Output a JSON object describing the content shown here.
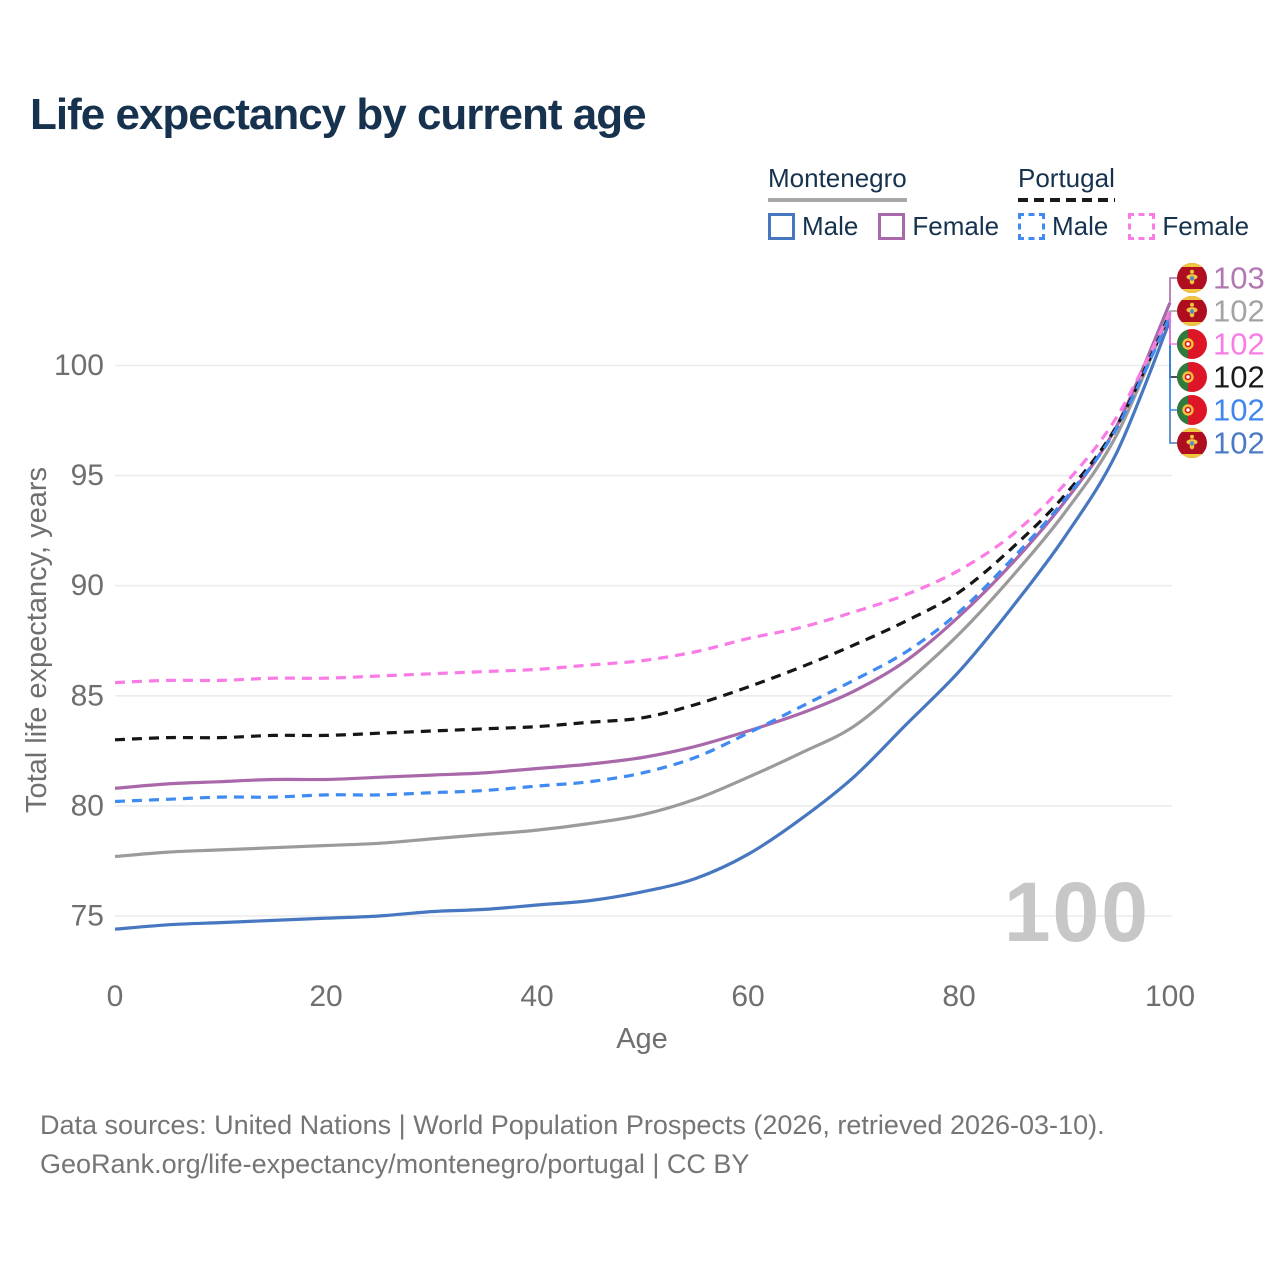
{
  "title": "Life expectancy by current age",
  "legend": {
    "groups": [
      {
        "label": "Montenegro",
        "line_style": "solid",
        "underline_color": "#a8a8a8",
        "items": [
          {
            "label": "Male",
            "color": "#4677c0"
          },
          {
            "label": "Female",
            "color": "#a868aa"
          }
        ]
      },
      {
        "label": "Portugal",
        "line_style": "dashed",
        "underline_color": "#1a1a1a",
        "items": [
          {
            "label": "Male",
            "color": "#3f8bf2"
          },
          {
            "label": "Female",
            "color": "#fb7be6"
          }
        ]
      }
    ]
  },
  "chart_data": {
    "type": "line",
    "title": "Life expectancy by current age",
    "xlabel": "Age",
    "ylabel": "Total life expectancy, years",
    "xticks": [
      0,
      20,
      40,
      60,
      80,
      100
    ],
    "yticks": [
      75,
      80,
      85,
      90,
      95,
      100
    ],
    "xlim": [
      0,
      100
    ],
    "ylim": [
      73.5,
      104
    ],
    "grid": "horizontal",
    "legend_position": "top-right",
    "watermark": "100",
    "x": [
      0,
      5,
      10,
      15,
      20,
      25,
      30,
      35,
      40,
      45,
      50,
      55,
      60,
      65,
      70,
      75,
      80,
      85,
      90,
      95,
      100
    ],
    "series": [
      {
        "id": "montenegro-male",
        "name": "Montenegro Male",
        "country": "Montenegro",
        "sex": "Male",
        "color": "#4677c0",
        "label_color": "#4a7bc4",
        "dashed": false,
        "flag": "me",
        "end_label": "102",
        "row": 5,
        "values": [
          74.4,
          74.6,
          74.7,
          74.8,
          74.9,
          75.0,
          75.2,
          75.3,
          75.5,
          75.7,
          76.1,
          76.7,
          77.8,
          79.4,
          81.3,
          83.7,
          86.1,
          89.0,
          92.2,
          96.1,
          102.05
        ]
      },
      {
        "id": "montenegro-total",
        "name": "Montenegro",
        "country": "Montenegro",
        "sex": "Both",
        "color": "#9b9b9b",
        "label_color": "#a3a3a3",
        "dashed": false,
        "flag": "me",
        "end_label": "102",
        "row": 1,
        "values": [
          77.7,
          77.9,
          78.0,
          78.1,
          78.2,
          78.3,
          78.5,
          78.7,
          78.9,
          79.2,
          79.6,
          80.3,
          81.3,
          82.4,
          83.6,
          85.6,
          87.8,
          90.4,
          93.3,
          96.9,
          102.45
        ]
      },
      {
        "id": "montenegro-female",
        "name": "Montenegro Female",
        "country": "Montenegro",
        "sex": "Female",
        "color": "#a868aa",
        "label_color": "#b177b1",
        "dashed": false,
        "flag": "me",
        "end_label": "103",
        "row": 0,
        "values": [
          80.8,
          81.0,
          81.1,
          81.2,
          81.2,
          81.3,
          81.4,
          81.5,
          81.7,
          81.9,
          82.2,
          82.7,
          83.4,
          84.2,
          85.2,
          86.6,
          88.6,
          91.0,
          93.8,
          97.3,
          102.85
        ]
      },
      {
        "id": "portugal-total",
        "name": "Portugal",
        "country": "Portugal",
        "sex": "Both",
        "color": "#161616",
        "label_color": "#1a1a1a",
        "dashed": true,
        "flag": "pt",
        "end_label": "102",
        "row": 3,
        "values": [
          83.0,
          83.1,
          83.1,
          83.2,
          83.2,
          83.3,
          83.4,
          83.5,
          83.6,
          83.8,
          84.0,
          84.6,
          85.4,
          86.3,
          87.3,
          88.4,
          89.7,
          91.7,
          94.1,
          97.3,
          102.35
        ]
      },
      {
        "id": "portugal-male",
        "name": "Portugal Male",
        "country": "Portugal",
        "sex": "Male",
        "color": "#3f8bf2",
        "label_color": "#3f86ee",
        "dashed": true,
        "flag": "pt",
        "end_label": "102",
        "row": 4,
        "values": [
          80.2,
          80.3,
          80.4,
          80.4,
          80.5,
          80.5,
          80.6,
          80.7,
          80.9,
          81.1,
          81.5,
          82.2,
          83.3,
          84.5,
          85.7,
          87.0,
          88.8,
          91.2,
          93.9,
          97.2,
          102.25
        ]
      },
      {
        "id": "portugal-female",
        "name": "Portugal Female",
        "country": "Portugal",
        "sex": "Female",
        "color": "#fb7be6",
        "label_color": "#fb7be6",
        "dashed": true,
        "flag": "pt",
        "end_label": "102",
        "row": 2,
        "values": [
          85.6,
          85.7,
          85.7,
          85.8,
          85.8,
          85.9,
          86.0,
          86.1,
          86.2,
          86.4,
          86.6,
          87.0,
          87.6,
          88.1,
          88.8,
          89.6,
          90.7,
          92.3,
          94.6,
          97.7,
          102.4
        ]
      }
    ],
    "colors": {
      "grid": "#ececec",
      "axis_text": "#6f6f6f",
      "watermark": "#c7c7c7",
      "flag_me_red": "#ae0e1f",
      "flag_me_gold": "#f0c63f",
      "flag_pt_green": "#2f7a3d",
      "flag_pt_red": "#dd1526",
      "flag_pt_gold": "#f2c33c"
    }
  },
  "footer": {
    "line1": "Data sources: United Nations | World Population Prospects (2026, retrieved 2026-03-10).",
    "line2": "GeoRank.org/life-expectancy/montenegro/portugal | CC BY"
  }
}
